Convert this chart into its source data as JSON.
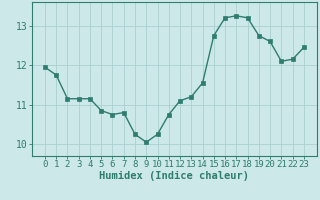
{
  "x": [
    0,
    1,
    2,
    3,
    4,
    5,
    6,
    7,
    8,
    9,
    10,
    11,
    12,
    13,
    14,
    15,
    16,
    17,
    18,
    19,
    20,
    21,
    22,
    23
  ],
  "y": [
    11.95,
    11.75,
    11.15,
    11.15,
    11.15,
    10.85,
    10.75,
    10.8,
    10.25,
    10.05,
    10.25,
    10.75,
    11.1,
    11.2,
    11.55,
    12.75,
    13.2,
    13.25,
    13.2,
    12.75,
    12.6,
    12.1,
    12.15,
    12.45
  ],
  "line_color": "#2e7d6e",
  "bg_color": "#cce8e8",
  "grid_color": "#aad0d0",
  "axis_color": "#2e7d6e",
  "xlabel": "Humidex (Indice chaleur)",
  "ylim": [
    9.7,
    13.6
  ],
  "yticks": [
    10,
    11,
    12,
    13
  ],
  "xticks": [
    0,
    1,
    2,
    3,
    4,
    5,
    6,
    7,
    8,
    9,
    10,
    11,
    12,
    13,
    14,
    15,
    16,
    17,
    18,
    19,
    20,
    21,
    22,
    23
  ],
  "font_color": "#2e7d6e",
  "marker_size": 2.5,
  "line_width": 1.0,
  "xlabel_fontsize": 7.5,
  "tick_fontsize": 6.5
}
